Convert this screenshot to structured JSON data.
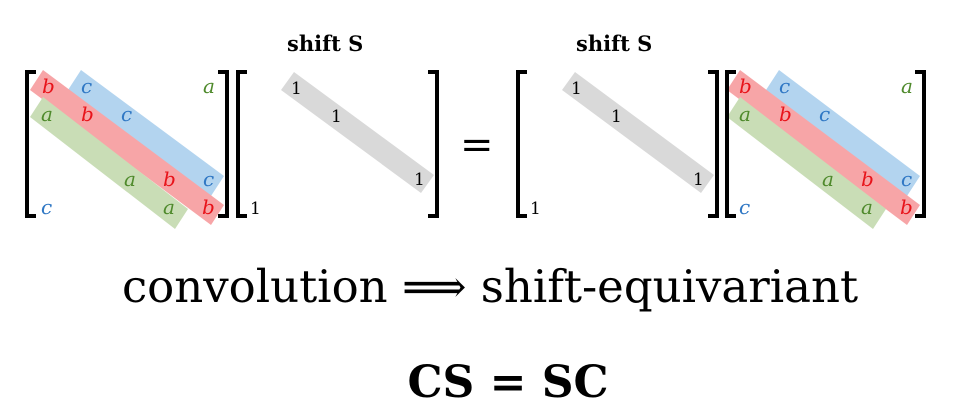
{
  "labels": {
    "shift_left": "shift S",
    "shift_right": "shift S"
  },
  "circulant": {
    "b": "b",
    "c": "c",
    "a": "a"
  },
  "shift": {
    "one": "1"
  },
  "equals": "=",
  "caption": "convolution ⟹ shift-equivariant",
  "formula": "CS = SC",
  "colors": {
    "b": "#e8131a",
    "c": "#2f77c4",
    "a": "#4f8a2c",
    "band_b": "#f7a5a7",
    "band_c": "#b3d4ef",
    "band_a": "#c9ddb6",
    "band_s": "#d9d9d9",
    "text": "#000000"
  }
}
